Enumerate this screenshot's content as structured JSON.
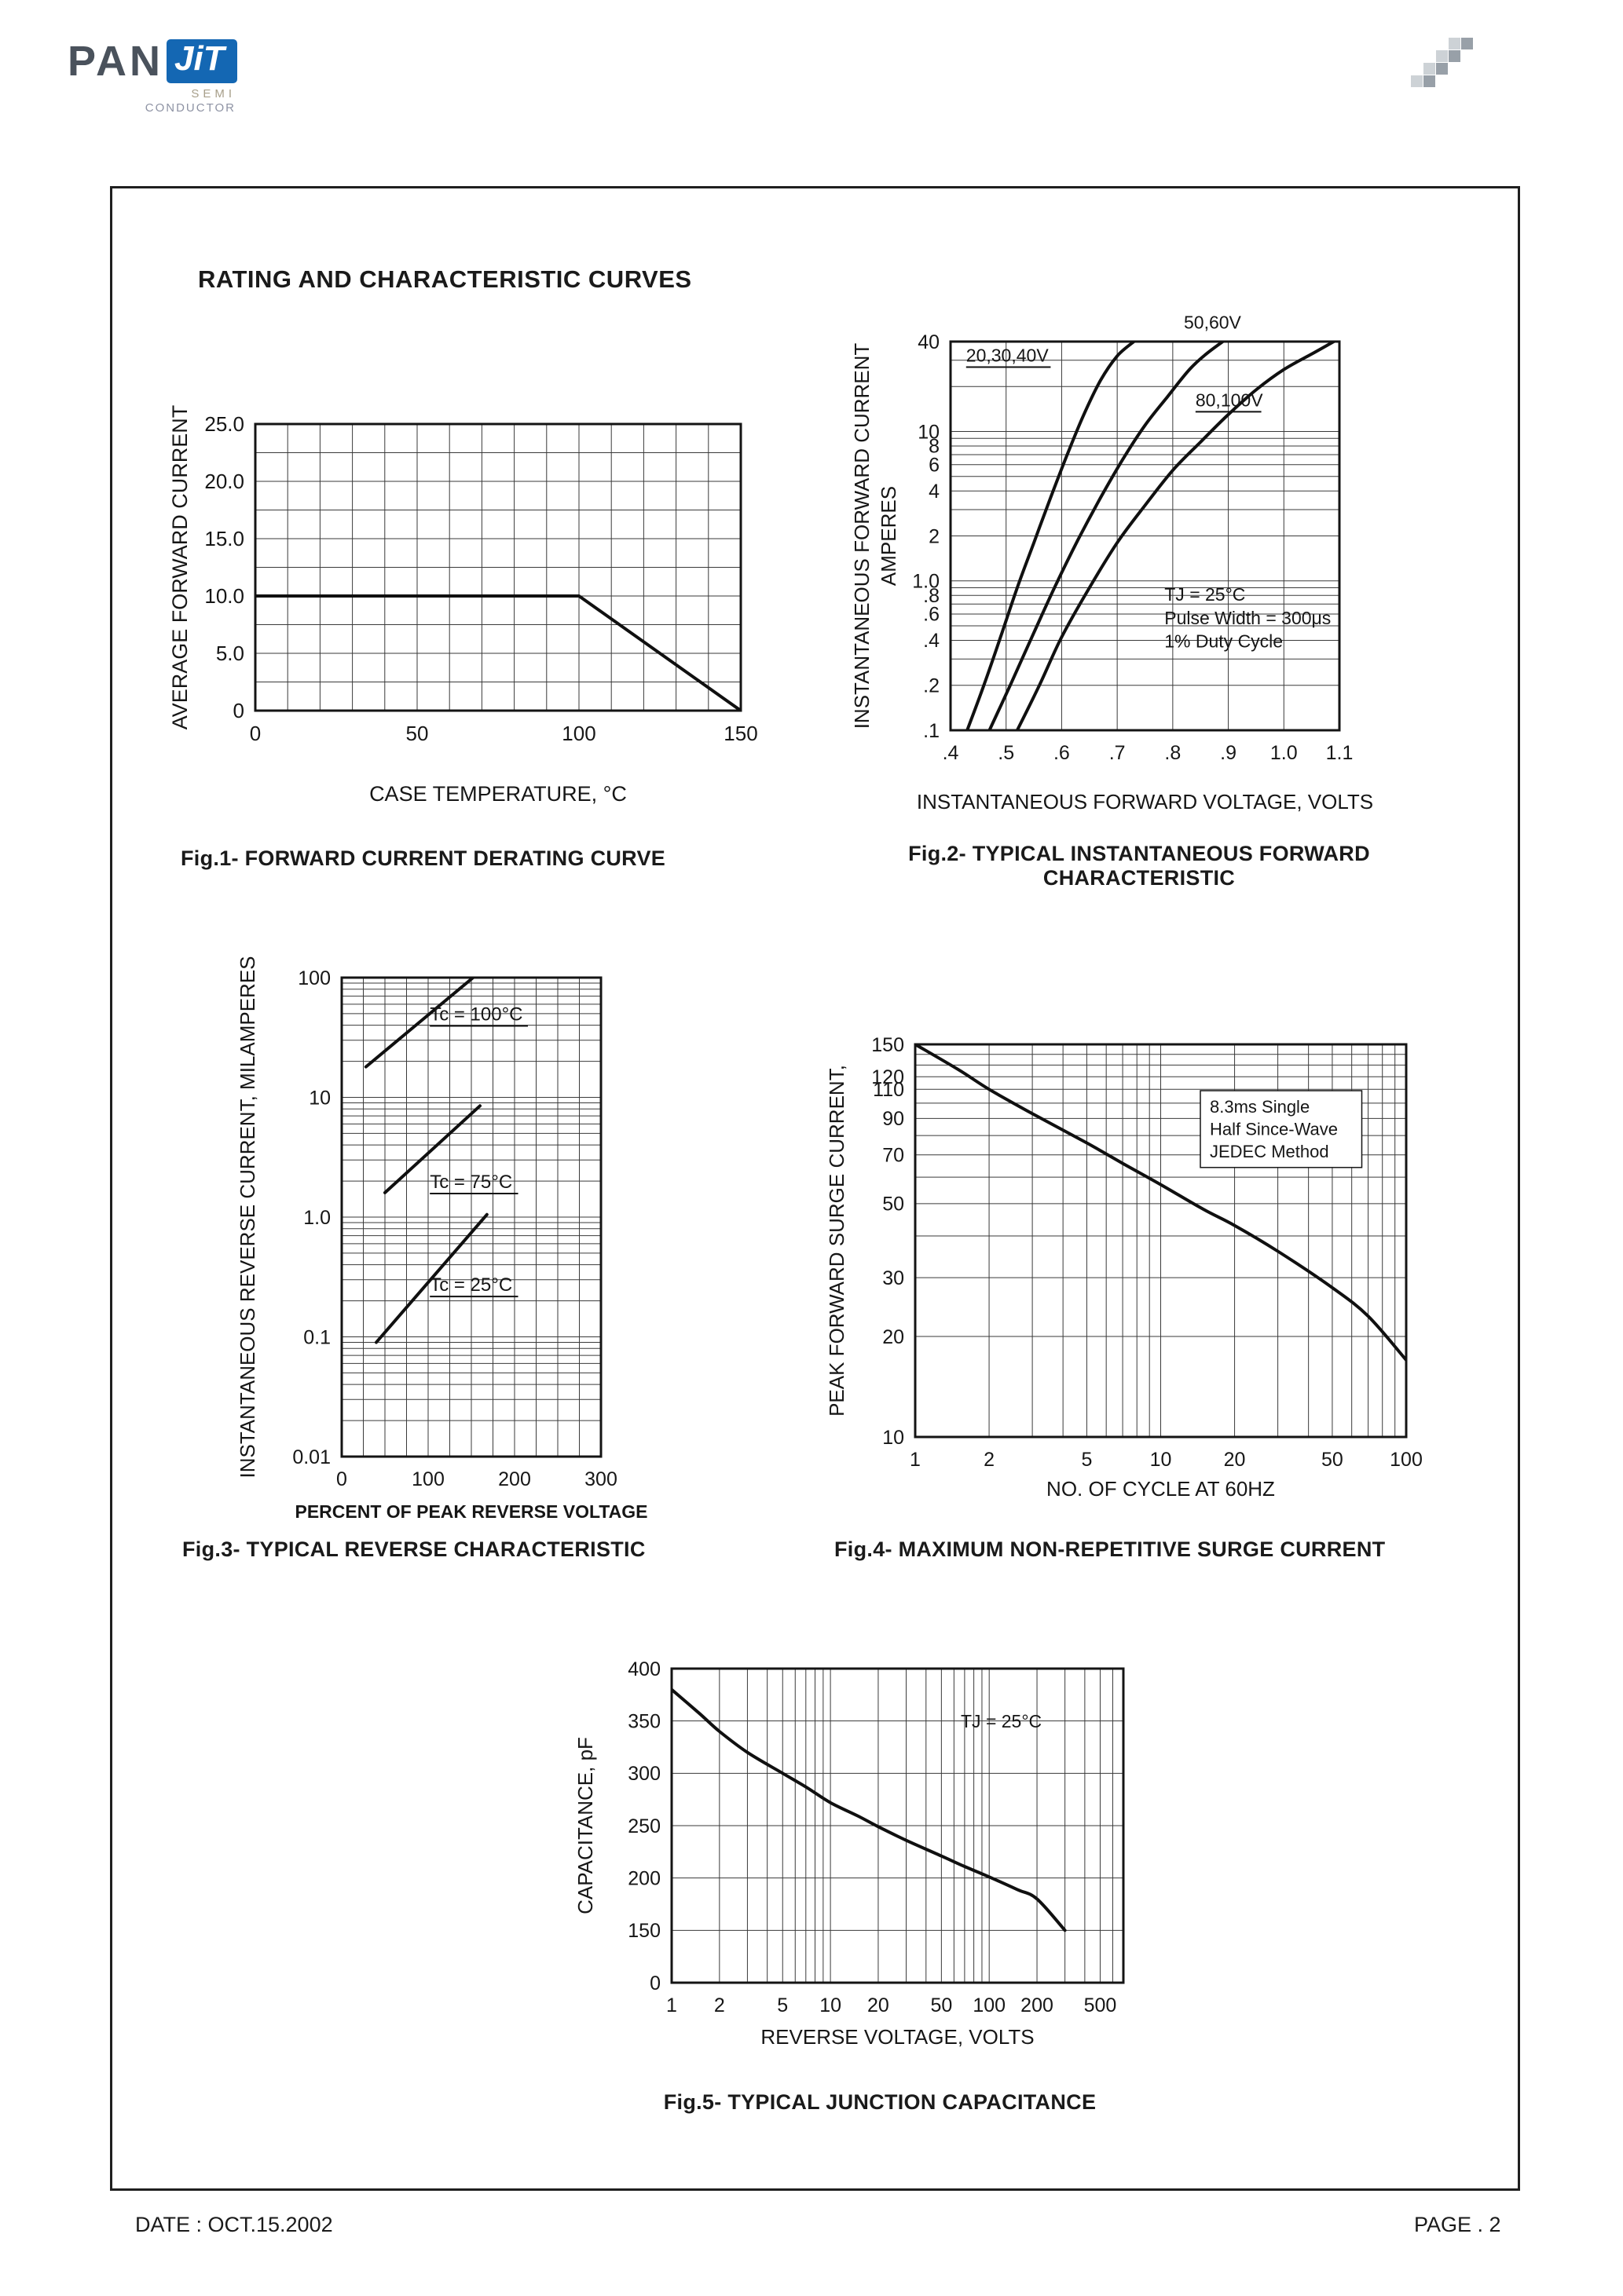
{
  "header": {
    "logo": {
      "pan": "PAN",
      "jit": "JiT",
      "line1": "SEMI",
      "line2": "CONDUCTOR"
    },
    "decoration": {
      "name": "checker-squares-icon",
      "cell": 16,
      "colors": {
        "1": "#98a0a8",
        "2": "#cdd2d6"
      },
      "pattern": [
        [
          0,
          0,
          0,
          2,
          1
        ],
        [
          0,
          0,
          2,
          1,
          0
        ],
        [
          0,
          2,
          1,
          0,
          0
        ],
        [
          2,
          1,
          0,
          0,
          0
        ]
      ]
    }
  },
  "title": "RATING AND CHARACTERISTIC CURVES",
  "footer": {
    "date": "DATE : OCT.15.2002",
    "page": "PAGE . 2"
  },
  "colors": {
    "logo_blue": "#1467b3",
    "logo_gray": "#4a525c",
    "ink": "#161616",
    "grid": "#3a3a3a"
  },
  "chart_data": [
    {
      "name": "fig1",
      "type": "line",
      "title": "Fig.1- FORWARD CURRENT DERATING CURVE",
      "xlabel": "CASE TEMPERATURE, °C",
      "ylabel": "AVERAGE FORWARD CURRENT",
      "x": {
        "scale": "linear",
        "min": 0,
        "max": 150,
        "ticks": [
          0,
          50,
          100,
          150
        ],
        "labels": [
          "0",
          "50",
          "100",
          "150"
        ],
        "minor_step": 10
      },
      "y": {
        "scale": "linear",
        "min": 0,
        "max": 25,
        "ticks": [
          0,
          5,
          10,
          15,
          20,
          25
        ],
        "labels": [
          "0",
          "5.0",
          "10.0",
          "15.0",
          "20.0",
          "25.0"
        ],
        "minor_step": 2.5
      },
      "series": [
        {
          "name": "derating",
          "smooth": false,
          "points": [
            [
              0,
              10
            ],
            [
              100,
              10
            ],
            [
              150,
              0
            ]
          ]
        }
      ],
      "annotations": []
    },
    {
      "name": "fig2",
      "type": "line",
      "title": "Fig.2- TYPICAL INSTANTANEOUS FORWARD\nCHARACTERISTIC",
      "xlabel": "INSTANTANEOUS FORWARD VOLTAGE, VOLTS",
      "ylabel": "INSTANTANEOUS FORWARD CURRENT",
      "ylabel2": "AMPERES",
      "x": {
        "scale": "linear",
        "min": 0.4,
        "max": 1.1,
        "ticks": [
          0.4,
          0.5,
          0.6,
          0.7,
          0.8,
          0.9,
          1.0,
          1.1
        ],
        "labels": [
          ".4",
          ".5",
          ".6",
          ".7",
          ".8",
          ".9",
          "1.0",
          "1.1"
        ]
      },
      "y": {
        "scale": "log",
        "min": 0.1,
        "max": 40,
        "ticks": [
          40,
          10,
          8,
          6,
          4,
          2,
          1,
          0.8,
          0.6,
          0.4,
          0.2,
          0.1
        ],
        "labels": [
          "40",
          "10",
          "8",
          "6",
          "4",
          "2",
          "1.0",
          ".8",
          ".6",
          ".4",
          ".2",
          ".1"
        ],
        "log_minors": true
      },
      "series": [
        {
          "name": "20,30,40V",
          "smooth": true,
          "points": [
            [
              0.43,
              0.1
            ],
            [
              0.46,
              0.2
            ],
            [
              0.49,
              0.42
            ],
            [
              0.52,
              0.9
            ],
            [
              0.55,
              1.8
            ],
            [
              0.58,
              3.6
            ],
            [
              0.61,
              7
            ],
            [
              0.64,
              13
            ],
            [
              0.67,
              22
            ],
            [
              0.7,
              32
            ],
            [
              0.73,
              40
            ]
          ]
        },
        {
          "name": "50,60V",
          "smooth": true,
          "points": [
            [
              0.47,
              0.1
            ],
            [
              0.51,
              0.21
            ],
            [
              0.55,
              0.45
            ],
            [
              0.59,
              0.95
            ],
            [
              0.63,
              1.9
            ],
            [
              0.67,
              3.6
            ],
            [
              0.71,
              6.5
            ],
            [
              0.75,
              11
            ],
            [
              0.79,
              17
            ],
            [
              0.83,
              26
            ],
            [
              0.86,
              33
            ],
            [
              0.89,
              40
            ]
          ]
        },
        {
          "name": "80,100V",
          "smooth": true,
          "points": [
            [
              0.52,
              0.1
            ],
            [
              0.56,
              0.2
            ],
            [
              0.6,
              0.42
            ],
            [
              0.65,
              0.9
            ],
            [
              0.7,
              1.8
            ],
            [
              0.75,
              3.2
            ],
            [
              0.8,
              5.5
            ],
            [
              0.85,
              8.5
            ],
            [
              0.9,
              13
            ],
            [
              0.95,
              19
            ],
            [
              1.0,
              26
            ],
            [
              1.05,
              33
            ],
            [
              1.09,
              40
            ]
          ]
        }
      ],
      "annotations": [
        {
          "fx": 0.04,
          "fy": 0.005,
          "lines": [
            "20,30,40V"
          ],
          "underline": true
        },
        {
          "fx": 0.6,
          "fy": -0.08,
          "lines": [
            "50,60V"
          ]
        },
        {
          "fx": 0.63,
          "fy": 0.12,
          "lines": [
            "80,100V"
          ],
          "underline": true
        },
        {
          "fx": 0.55,
          "fy": 0.62,
          "lines": [
            "TJ = 25°C",
            "Pulse Width = 300μs",
            "1% Duty Cycle"
          ]
        }
      ]
    },
    {
      "name": "fig3",
      "type": "line",
      "title": "Fig.3- TYPICAL REVERSE CHARACTERISTIC",
      "xlabel": "PERCENT OF PEAK REVERSE VOLTAGE",
      "ylabel": "INSTANTANEOUS REVERSE CURRENT, MILAMPERES",
      "x": {
        "scale": "linear",
        "min": 0,
        "max": 300,
        "ticks": [
          0,
          100,
          200,
          300
        ],
        "labels": [
          "0",
          "100",
          "200",
          "300"
        ],
        "minor_step": 25
      },
      "y": {
        "scale": "log",
        "min": 0.01,
        "max": 100,
        "ticks": [
          100,
          10,
          1,
          0.1,
          0.01
        ],
        "labels": [
          "100",
          "10",
          "1.0",
          "0.1",
          "0.01"
        ],
        "log_minors": true
      },
      "series": [
        {
          "name": "Tc = 100°C",
          "smooth": false,
          "points": [
            [
              28,
              18
            ],
            [
              152,
              100
            ]
          ]
        },
        {
          "name": "Tc = 75°C",
          "smooth": false,
          "points": [
            [
              50,
              1.6
            ],
            [
              160,
              8.5
            ]
          ]
        },
        {
          "name": "Tc = 25°C",
          "smooth": false,
          "points": [
            [
              40,
              0.09
            ],
            [
              168,
              1.05
            ]
          ]
        }
      ],
      "annotations": [
        {
          "fx": 0.34,
          "fy": 0.05,
          "lines": [
            "Tc = 100°C"
          ],
          "underline": true
        },
        {
          "fx": 0.34,
          "fy": 0.4,
          "lines": [
            "Tc = 75°C"
          ],
          "underline": true
        },
        {
          "fx": 0.34,
          "fy": 0.615,
          "lines": [
            "Tc = 25°C"
          ],
          "underline": true
        }
      ]
    },
    {
      "name": "fig4",
      "type": "line",
      "title": "Fig.4- MAXIMUM NON-REPETITIVE SURGE CURRENT",
      "xlabel": "NO. OF CYCLE AT 60HZ",
      "ylabel": "PEAK FORWARD SURGE CURRENT,",
      "x": {
        "scale": "log",
        "min": 1,
        "max": 100,
        "ticks": [
          1,
          2,
          5,
          10,
          20,
          50,
          100
        ],
        "labels": [
          "1",
          "2",
          "5",
          "10",
          "20",
          "50",
          "100"
        ],
        "log_minors": true
      },
      "y": {
        "scale": "log",
        "min": 10,
        "max": 150,
        "ticks": [
          150,
          120,
          110,
          90,
          70,
          50,
          30,
          20,
          10
        ],
        "labels": [
          "150",
          "120",
          "110",
          "90",
          "70",
          "50",
          "30",
          "20",
          "10"
        ],
        "minor_step": 10
      },
      "series": [
        {
          "name": "surge",
          "smooth": true,
          "points": [
            [
              1,
              150
            ],
            [
              1.5,
              126
            ],
            [
              2,
              110
            ],
            [
              3,
              93
            ],
            [
              5,
              76
            ],
            [
              7,
              66
            ],
            [
              10,
              57
            ],
            [
              15,
              48
            ],
            [
              20,
              43
            ],
            [
              30,
              36
            ],
            [
              50,
              28
            ],
            [
              70,
              23
            ],
            [
              100,
              17
            ]
          ]
        }
      ],
      "annotations": [
        {
          "fx": 0.6,
          "fy": 0.13,
          "lines": [
            "8.3ms Single",
            "Half Since-Wave",
            "JEDEC Method"
          ],
          "box": true
        }
      ]
    },
    {
      "name": "fig5",
      "type": "line",
      "title": "Fig.5- TYPICAL JUNCTION CAPACITANCE",
      "xlabel": "REVERSE VOLTAGE, VOLTS",
      "ylabel": "CAPACITANCE, pF",
      "x": {
        "scale": "log",
        "min": 1,
        "max": 700,
        "ticks": [
          1,
          2,
          5,
          10,
          20,
          50,
          100,
          200,
          500
        ],
        "labels": [
          "1",
          "2",
          "5",
          "10",
          "20",
          "50",
          "100",
          "200",
          "500"
        ],
        "log_minors": true
      },
      "y": {
        "scale": "ticks-even",
        "ticks": [
          0,
          150,
          200,
          250,
          300,
          350,
          400
        ],
        "labels": [
          "0",
          "150",
          "200",
          "250",
          "300",
          "350",
          "400"
        ]
      },
      "series": [
        {
          "name": "capacitance",
          "smooth": true,
          "points": [
            [
              1,
              380
            ],
            [
              1.5,
              357
            ],
            [
              2,
              340
            ],
            [
              3,
              320
            ],
            [
              5,
              300
            ],
            [
              7,
              287
            ],
            [
              10,
              272
            ],
            [
              15,
              259
            ],
            [
              20,
              249
            ],
            [
              30,
              236
            ],
            [
              50,
              221
            ],
            [
              70,
              211
            ],
            [
              100,
              201
            ],
            [
              150,
              189
            ],
            [
              200,
              180
            ],
            [
              300,
              150
            ]
          ]
        }
      ],
      "annotations": [
        {
          "fx": 0.64,
          "fy": 0.13,
          "lines": [
            "TJ = 25°C"
          ]
        }
      ]
    }
  ]
}
